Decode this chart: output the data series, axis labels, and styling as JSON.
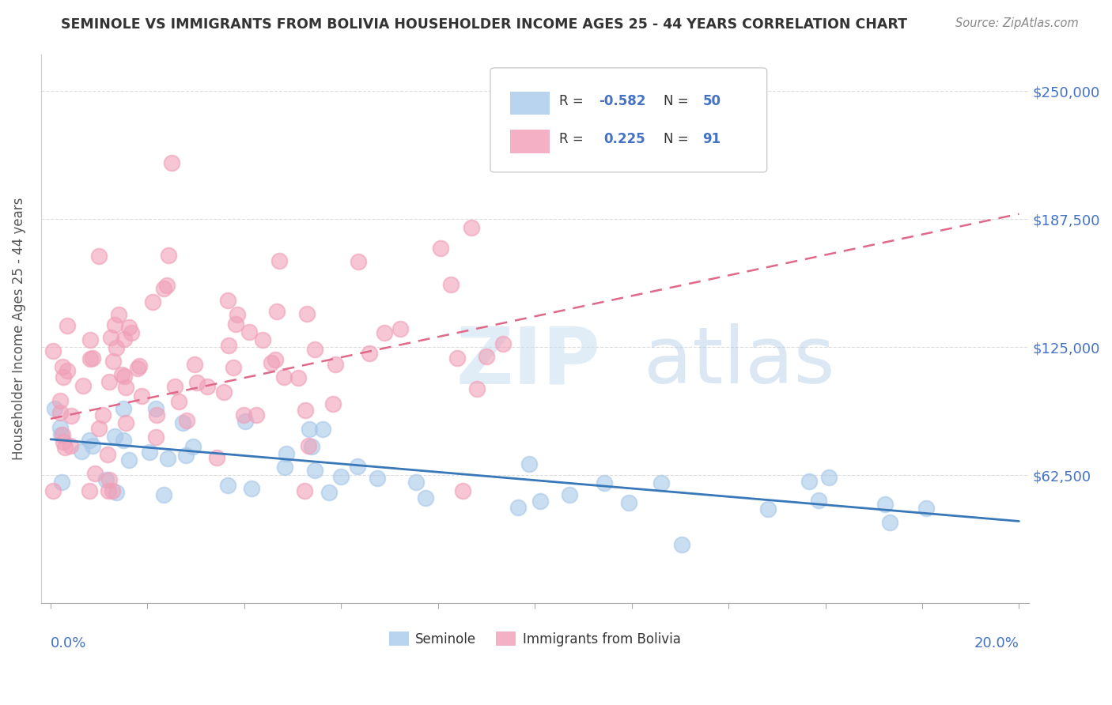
{
  "title": "SEMINOLE VS IMMIGRANTS FROM BOLIVIA HOUSEHOLDER INCOME AGES 25 - 44 YEARS CORRELATION CHART",
  "source": "Source: ZipAtlas.com",
  "ylabel": "Householder Income Ages 25 - 44 years",
  "ytick_vals": [
    0,
    62500,
    125000,
    187500,
    250000
  ],
  "ytick_labels": [
    "",
    "$62,500",
    "$125,000",
    "$187,500",
    "$250,000"
  ],
  "xlim": [
    0.0,
    0.2
  ],
  "ylim": [
    0,
    270000
  ],
  "watermark": "ZIPatlas",
  "blue_scatter_color": "#a8c8e8",
  "pink_scatter_color": "#f0a0b8",
  "blue_line_color": "#3878b8",
  "pink_line_color": "#e06888",
  "legend_blue_fill": "#b8d4ee",
  "legend_pink_fill": "#f4b0c4",
  "tick_color": "#4472c4",
  "title_color": "#333333",
  "source_color": "#888888",
  "grid_color": "#dddddd",
  "watermark_color": "#ddeef8",
  "seminole_r": -0.582,
  "seminole_n": 50,
  "bolivia_r": 0.225,
  "bolivia_n": 91,
  "sem_line_x0": 0.0,
  "sem_line_y0": 80000,
  "sem_line_x1": 0.2,
  "sem_line_y1": 40000,
  "bol_line_x0": 0.0,
  "bol_line_y0": 90000,
  "bol_line_x1": 0.2,
  "bol_line_y1": 190000
}
